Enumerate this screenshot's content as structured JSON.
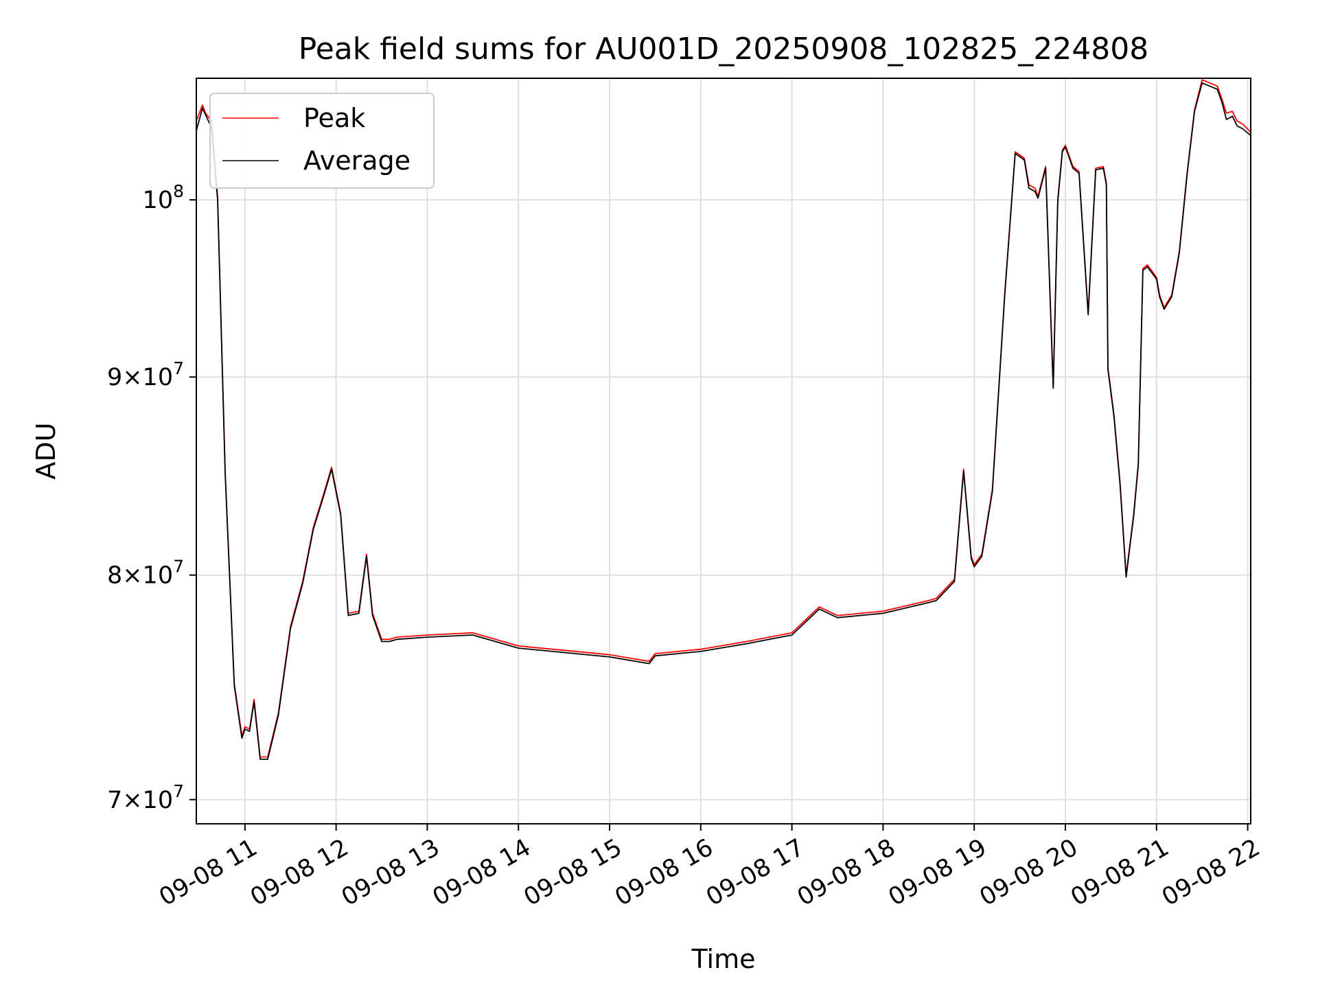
{
  "chart_data": {
    "type": "line",
    "title": "Peak field sums for AU001D_20250908_102825_224808",
    "xlabel": "Time",
    "ylabel": "ADU",
    "x_range": [
      "09-08 10:28",
      "09-08 22:02"
    ],
    "ylim": [
      69000000,
      107500000
    ],
    "y_scale": "log",
    "grid": true,
    "legend_position": "upper-left",
    "x_ticks": [
      "09-08 11",
      "09-08 12",
      "09-08 13",
      "09-08 14",
      "09-08 15",
      "09-08 16",
      "09-08 17",
      "09-08 18",
      "09-08 19",
      "09-08 20",
      "09-08 21",
      "09-08 22"
    ],
    "y_ticks": [
      {
        "value": 70000000,
        "mantissa": "7",
        "base": "10",
        "exp": "7"
      },
      {
        "value": 80000000,
        "mantissa": "8",
        "base": "10",
        "exp": "7"
      },
      {
        "value": 90000000,
        "mantissa": "9",
        "base": "10",
        "exp": "7"
      },
      {
        "value": 100000000,
        "mantissa": "",
        "base": "10",
        "exp": "8"
      }
    ],
    "series": [
      {
        "name": "Peak",
        "color": "#ff0000",
        "x": [
          "09-08 10:28",
          "09-08 10:32",
          "09-08 10:34",
          "09-08 10:38",
          "09-08 10:42",
          "09-08 10:47",
          "09-08 10:53",
          "09-08 10:58",
          "09-08 11:00",
          "09-08 11:03",
          "09-08 11:06",
          "09-08 11:10",
          "09-08 11:15",
          "09-08 11:22",
          "09-08 11:30",
          "09-08 11:38",
          "09-08 11:45",
          "09-08 11:52",
          "09-08 11:57",
          "09-08 12:03",
          "09-08 12:08",
          "09-08 12:15",
          "09-08 12:20",
          "09-08 12:24",
          "09-08 12:30",
          "09-08 12:35",
          "09-08 12:40",
          "09-08 13:00",
          "09-08 13:30",
          "09-08 14:00",
          "09-08 14:30",
          "09-08 15:00",
          "09-08 15:26",
          "09-08 15:30",
          "09-08 16:00",
          "09-08 16:30",
          "09-08 17:00",
          "09-08 17:18",
          "09-08 17:30",
          "09-08 18:00",
          "09-08 18:30",
          "09-08 18:35",
          "09-08 18:47",
          "09-08 18:53",
          "09-08 18:58",
          "09-08 19:00",
          "09-08 19:05",
          "09-08 19:12",
          "09-08 19:20",
          "09-08 19:27",
          "09-08 19:30",
          "09-08 19:33",
          "09-08 19:36",
          "09-08 19:40",
          "09-08 19:42",
          "09-08 19:47",
          "09-08 19:52",
          "09-08 19:55",
          "09-08 19:58",
          "09-08 20:00",
          "09-08 20:05",
          "09-08 20:09",
          "09-08 20:15",
          "09-08 20:20",
          "09-08 20:25",
          "09-08 20:27",
          "09-08 20:28",
          "09-08 20:32",
          "09-08 20:36",
          "09-08 20:40",
          "09-08 20:45",
          "09-08 20:48",
          "09-08 20:51",
          "09-08 20:54",
          "09-08 21:00",
          "09-08 21:02",
          "09-08 21:05",
          "09-08 21:10",
          "09-08 21:15",
          "09-08 21:20",
          "09-08 21:25",
          "09-08 21:30",
          "09-08 21:35",
          "09-08 21:40",
          "09-08 21:43",
          "09-08 21:46",
          "09-08 21:50",
          "09-08 21:53",
          "09-08 21:57",
          "09-08 22:02"
        ],
        "values": [
          104800000,
          105800000,
          105300000,
          104800000,
          100200000,
          85000000,
          75000000,
          72700000,
          73100000,
          73000000,
          74300000,
          71800000,
          71800000,
          73700000,
          77600000,
          79700000,
          82300000,
          84000000,
          85300000,
          83000000,
          78200000,
          78300000,
          81000000,
          78200000,
          77000000,
          77000000,
          77100000,
          77200000,
          77300000,
          76700000,
          76500000,
          76300000,
          76000000,
          76350000,
          76550000,
          76900000,
          77300000,
          78500000,
          78100000,
          78300000,
          78800000,
          78900000,
          79800000,
          85200000,
          80900000,
          80500000,
          81000000,
          84200000,
          94500000,
          102900000,
          102700000,
          102500000,
          100900000,
          100700000,
          100200000,
          102000000,
          89500000,
          100000000,
          103000000,
          103300000,
          102000000,
          101700000,
          93500000,
          101900000,
          102000000,
          101000000,
          90500000,
          88000000,
          84500000,
          80000000,
          83000000,
          85500000,
          96000000,
          96200000,
          95500000,
          94500000,
          93800000,
          94500000,
          97000000,
          101500000,
          105500000,
          107400000,
          107200000,
          107000000,
          106200000,
          105300000,
          105400000,
          104800000,
          104600000,
          104100000
        ]
      },
      {
        "name": "Average",
        "color": "#000000",
        "x": [
          "09-08 10:28",
          "09-08 10:32",
          "09-08 10:34",
          "09-08 10:38",
          "09-08 10:42",
          "09-08 10:47",
          "09-08 10:53",
          "09-08 10:58",
          "09-08 11:00",
          "09-08 11:03",
          "09-08 11:06",
          "09-08 11:10",
          "09-08 11:15",
          "09-08 11:22",
          "09-08 11:30",
          "09-08 11:38",
          "09-08 11:45",
          "09-08 11:52",
          "09-08 11:57",
          "09-08 12:03",
          "09-08 12:08",
          "09-08 12:15",
          "09-08 12:20",
          "09-08 12:24",
          "09-08 12:30",
          "09-08 12:35",
          "09-08 12:40",
          "09-08 13:00",
          "09-08 13:30",
          "09-08 14:00",
          "09-08 14:30",
          "09-08 15:00",
          "09-08 15:26",
          "09-08 15:30",
          "09-08 16:00",
          "09-08 16:30",
          "09-08 17:00",
          "09-08 17:18",
          "09-08 17:30",
          "09-08 18:00",
          "09-08 18:30",
          "09-08 18:35",
          "09-08 18:47",
          "09-08 18:53",
          "09-08 18:58",
          "09-08 19:00",
          "09-08 19:05",
          "09-08 19:12",
          "09-08 19:20",
          "09-08 19:27",
          "09-08 19:30",
          "09-08 19:33",
          "09-08 19:36",
          "09-08 19:40",
          "09-08 19:42",
          "09-08 19:47",
          "09-08 19:52",
          "09-08 19:55",
          "09-08 19:58",
          "09-08 20:00",
          "09-08 20:05",
          "09-08 20:09",
          "09-08 20:15",
          "09-08 20:20",
          "09-08 20:25",
          "09-08 20:27",
          "09-08 20:28",
          "09-08 20:32",
          "09-08 20:36",
          "09-08 20:40",
          "09-08 20:45",
          "09-08 20:48",
          "09-08 20:51",
          "09-08 20:54",
          "09-08 21:00",
          "09-08 21:02",
          "09-08 21:05",
          "09-08 21:10",
          "09-08 21:15",
          "09-08 21:20",
          "09-08 21:25",
          "09-08 21:30",
          "09-08 21:35",
          "09-08 21:40",
          "09-08 21:43",
          "09-08 21:46",
          "09-08 21:50",
          "09-08 21:53",
          "09-08 21:57",
          "09-08 22:02"
        ],
        "values": [
          104200000,
          105600000,
          105200000,
          104400000,
          100000000,
          84900000,
          74900000,
          72600000,
          73000000,
          72900000,
          74200000,
          71700000,
          71700000,
          73600000,
          77500000,
          79600000,
          82200000,
          83900000,
          85200000,
          82900000,
          78100000,
          78200000,
          80900000,
          78100000,
          76900000,
          76900000,
          77000000,
          77100000,
          77200000,
          76600000,
          76400000,
          76200000,
          75900000,
          76250000,
          76450000,
          76800000,
          77200000,
          78400000,
          78000000,
          78200000,
          78700000,
          78800000,
          79700000,
          85100000,
          80800000,
          80400000,
          80900000,
          84100000,
          94400000,
          102800000,
          102600000,
          102400000,
          100700000,
          100500000,
          100100000,
          101900000,
          89400000,
          99900000,
          102900000,
          103200000,
          101900000,
          101600000,
          93400000,
          101800000,
          101900000,
          100900000,
          90400000,
          87900000,
          84400000,
          79900000,
          82900000,
          85400000,
          95900000,
          96100000,
          95400000,
          94400000,
          93700000,
          94400000,
          96900000,
          101400000,
          105400000,
          107200000,
          107000000,
          106800000,
          106000000,
          104900000,
          105100000,
          104500000,
          104300000,
          103900000
        ]
      }
    ]
  }
}
